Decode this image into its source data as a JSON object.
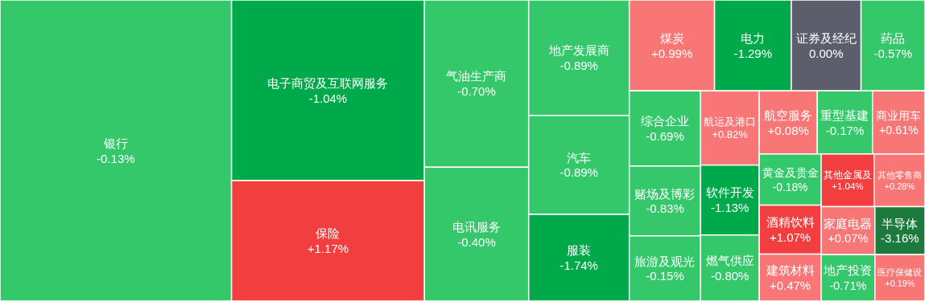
{
  "chart_data": {
    "type": "other",
    "categories": [
      "银行",
      "电子商贸及互联网服务",
      "保险",
      "气油生产商",
      "电讯服务",
      "地产发展商",
      "汽车",
      "服装",
      "煤炭",
      "电力",
      "证券及经纪",
      "药品",
      "综合企业",
      "赌场及博彩",
      "旅游及观光",
      "航运及港口",
      "软件开发",
      "燃气供应",
      "航空服务",
      "重型基建",
      "商业用车",
      "黄金及贵金",
      "酒精饮料",
      "建筑材料",
      "其他金属及",
      "其他零售商",
      "家庭电器",
      "地产投资",
      "半导体",
      "医疗保健设"
    ],
    "values": [
      -0.13,
      -1.04,
      1.17,
      -0.7,
      -0.4,
      -0.89,
      -0.89,
      -1.74,
      0.99,
      -1.29,
      0.0,
      -0.57,
      -0.69,
      -0.83,
      -0.15,
      0.82,
      -1.13,
      -0.8,
      0.08,
      -0.17,
      0.61,
      -0.18,
      1.07,
      0.47,
      1.04,
      0.28,
      0.07,
      -0.71,
      -3.16,
      0.19
    ],
    "value_labels": [
      "-0.13%",
      "-1.04%",
      "+1.17%",
      "-0.70%",
      "-0.40%",
      "-0.89%",
      "-0.89%",
      "-1.74%",
      "+0.99%",
      "-1.29%",
      "0.00%",
      "-0.57%",
      "-0.69%",
      "-0.83%",
      "-0.15%",
      "+0.82%",
      "-1.13%",
      "-0.80%",
      "+0.08%",
      "-0.17%",
      "+0.61%",
      "-0.18%",
      "+1.07%",
      "+0.47%",
      "+1.04%",
      "+0.28%",
      "+0.07%",
      "-0.71%",
      "-3.16%",
      "+0.19%"
    ],
    "data_labels": true
  }
}
